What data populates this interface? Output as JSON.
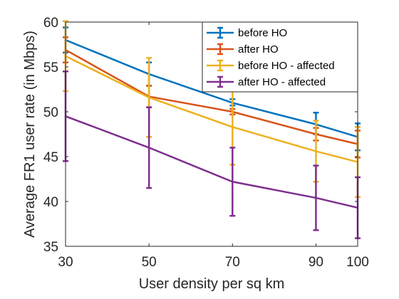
{
  "chart_data": {
    "type": "line",
    "title": "",
    "xlabel": "User density per sq km",
    "ylabel": "Average FR1 user rate (in Mbps)",
    "x": [
      30,
      50,
      70,
      90,
      100
    ],
    "xticks": [
      "30",
      "50",
      "70",
      "90",
      "100"
    ],
    "xlim": [
      30,
      100
    ],
    "yticks": [
      "35",
      "40",
      "45",
      "50",
      "55",
      "60"
    ],
    "ylim": [
      35,
      60
    ],
    "grid": false,
    "legend_position": "top-right",
    "series": [
      {
        "name": "before HO",
        "color": "#0072BD",
        "values": [
          58.0,
          54.2,
          51.0,
          48.6,
          47.2
        ],
        "err_low": [
          56.6,
          52.9,
          50.7,
          47.5,
          45.7
        ],
        "err_high": [
          59.4,
          55.5,
          51.4,
          49.9,
          48.7
        ]
      },
      {
        "name": "after HO",
        "color": "#D95319",
        "values": [
          56.9,
          51.7,
          50.0,
          47.5,
          46.4
        ],
        "err_low": [
          55.5,
          50.5,
          49.7,
          46.8,
          44.9
        ],
        "err_high": [
          58.3,
          52.9,
          50.3,
          48.2,
          47.9
        ]
      },
      {
        "name": "before HO - affected",
        "color": "#EDB120",
        "values": [
          56.2,
          51.6,
          48.3,
          45.6,
          44.4
        ],
        "err_low": [
          52.3,
          47.2,
          44.1,
          42.2,
          40.5
        ],
        "err_high": [
          60.1,
          56.0,
          52.5,
          49.0,
          48.3
        ]
      },
      {
        "name": "after HO - affected",
        "color": "#7E2F8E",
        "values": [
          49.5,
          46.0,
          42.2,
          40.4,
          39.3
        ],
        "err_low": [
          44.5,
          41.5,
          38.4,
          36.8,
          35.9
        ],
        "err_high": [
          54.5,
          50.5,
          46.0,
          44.0,
          42.7
        ]
      }
    ]
  }
}
